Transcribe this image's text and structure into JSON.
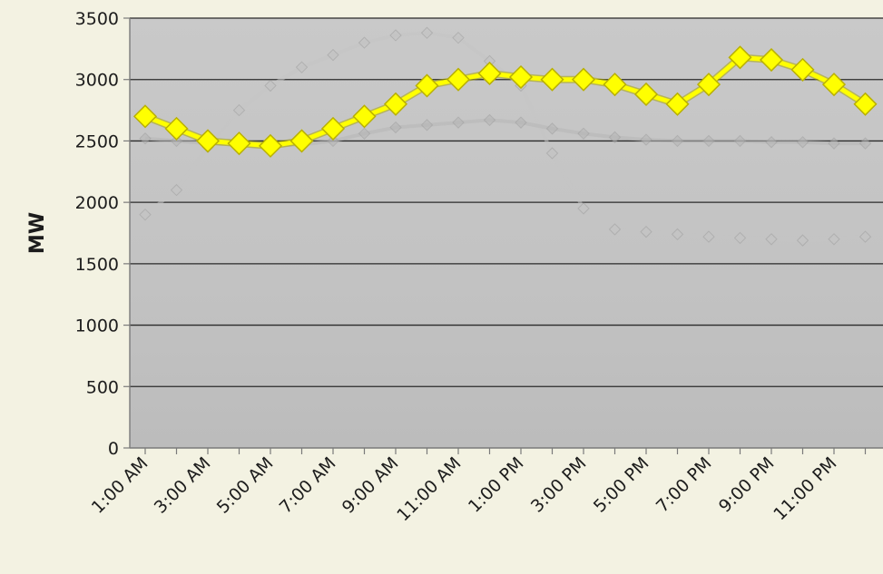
{
  "chart_data": {
    "type": "line",
    "title": "",
    "xlabel": "",
    "ylabel": "MW",
    "ylim": [
      0,
      3500
    ],
    "yticks": [
      0,
      500,
      1000,
      1500,
      2000,
      2500,
      3000,
      3500
    ],
    "ytick_labels": [
      "0",
      "500",
      "1000",
      "1500",
      "2000",
      "2500",
      "3000",
      "3500"
    ],
    "x": [
      "1:00 AM",
      "2:00 AM",
      "3:00 AM",
      "4:00 AM",
      "5:00 AM",
      "6:00 AM",
      "7:00 AM",
      "8:00 AM",
      "9:00 AM",
      "10:00 AM",
      "11:00 AM",
      "12:00 PM",
      "1:00 PM",
      "2:00 PM",
      "3:00 PM",
      "4:00 PM",
      "5:00 PM",
      "6:00 PM",
      "7:00 PM",
      "8:00 PM",
      "9:00 PM",
      "10:00 PM",
      "11:00 PM",
      "12:00 AM"
    ],
    "xtick_labels": [
      "1:00 AM",
      "3:00 AM",
      "5:00 AM",
      "7:00 AM",
      "9:00 AM",
      "11:00 AM",
      "1:00 PM",
      "3:00 PM",
      "5:00 PM",
      "7:00 PM",
      "9:00 PM",
      "11:00 PM"
    ],
    "grid": true,
    "legend": "none",
    "series": [
      {
        "color": "#ffff00",
        "marker": "diamond",
        "values": [
          2700,
          2600,
          2500,
          2480,
          2460,
          2500,
          2600,
          2700,
          2800,
          2950,
          3000,
          3050,
          3020,
          3000,
          3000,
          2960,
          2880,
          2800,
          2960,
          3180,
          3160,
          3080,
          2960,
          2800
        ]
      },
      {
        "color": "#c4c4c4",
        "marker": "diamond",
        "values": [
          1900,
          2100,
          2450,
          2750,
          2950,
          3100,
          3200,
          3300,
          3360,
          3380,
          3340,
          3150,
          2950,
          2400,
          1950,
          1780,
          1760,
          1740,
          1720,
          1710,
          1700,
          1690,
          1700,
          1720
        ]
      },
      {
        "color": "#b6b6b6",
        "marker": "diamond",
        "values": [
          2520,
          2500,
          2480,
          2470,
          2460,
          2470,
          2500,
          2560,
          2610,
          2630,
          2650,
          2670,
          2650,
          2600,
          2560,
          2530,
          2510,
          2500,
          2500,
          2500,
          2490,
          2490,
          2480,
          2480
        ]
      }
    ],
    "colors": {
      "page_background": "#f3f2e2",
      "plot_background": "#c6c6c6",
      "gridline": "#2a2a2a",
      "axis": "#7a7a7a"
    }
  }
}
